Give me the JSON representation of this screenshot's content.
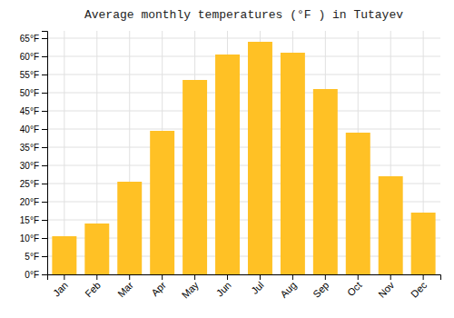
{
  "chart_data": {
    "type": "bar",
    "title": "Average monthly temperatures (°F ) in Tutayev",
    "categories": [
      "Jan",
      "Feb",
      "Mar",
      "Apr",
      "May",
      "Jun",
      "Jul",
      "Aug",
      "Sep",
      "Oct",
      "Nov",
      "Dec"
    ],
    "values": [
      10.5,
      14,
      25.5,
      39.5,
      53.5,
      60.5,
      64,
      61,
      51,
      39,
      27,
      17
    ],
    "color": "#FFC125",
    "ylim": [
      0,
      67
    ],
    "yticks": [
      {
        "value": 0,
        "label": "0°F"
      },
      {
        "value": 5,
        "label": "5°F"
      },
      {
        "value": 10,
        "label": "10°F"
      },
      {
        "value": 15,
        "label": "15°F"
      },
      {
        "value": 20,
        "label": "20°F"
      },
      {
        "value": 25,
        "label": "25°F"
      },
      {
        "value": 30,
        "label": "30°F"
      },
      {
        "value": 35,
        "label": "35°F"
      },
      {
        "value": 40,
        "label": "40°F"
      },
      {
        "value": 45,
        "label": "45°F"
      },
      {
        "value": 50,
        "label": "50°F"
      },
      {
        "value": 55,
        "label": "55°F"
      },
      {
        "value": 60,
        "label": "60°F"
      },
      {
        "value": 65,
        "label": "65°F"
      }
    ],
    "grid": true
  }
}
